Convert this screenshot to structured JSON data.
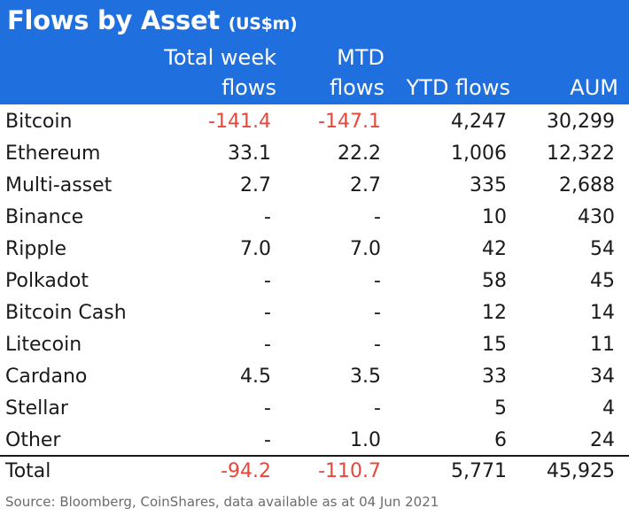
{
  "title": "Flows by Asset",
  "title_unit": "(US$m)",
  "columns": {
    "c1_line1": "Total week",
    "c1_line2": "flows",
    "c2_line1": "MTD",
    "c2_line2": "flows",
    "c3": "YTD flows",
    "c4": "AUM"
  },
  "rows": [
    {
      "name": "Bitcoin",
      "week": "-141.4",
      "mtd": "-147.1",
      "ytd": "4,247",
      "aum": "30,299"
    },
    {
      "name": "Ethereum",
      "week": "33.1",
      "mtd": "22.2",
      "ytd": "1,006",
      "aum": "12,322"
    },
    {
      "name": "Multi-asset",
      "week": "2.7",
      "mtd": "2.7",
      "ytd": "335",
      "aum": "2,688"
    },
    {
      "name": "Binance",
      "week": "-",
      "mtd": "-",
      "ytd": "10",
      "aum": "430"
    },
    {
      "name": "Ripple",
      "week": "7.0",
      "mtd": "7.0",
      "ytd": "42",
      "aum": "54"
    },
    {
      "name": "Polkadot",
      "week": "-",
      "mtd": "-",
      "ytd": "58",
      "aum": "45"
    },
    {
      "name": "Bitcoin Cash",
      "week": "-",
      "mtd": "-",
      "ytd": "12",
      "aum": "14"
    },
    {
      "name": "Litecoin",
      "week": "-",
      "mtd": "-",
      "ytd": "15",
      "aum": "11"
    },
    {
      "name": "Cardano",
      "week": "4.5",
      "mtd": "3.5",
      "ytd": "33",
      "aum": "34"
    },
    {
      "name": "Stellar",
      "week": "-",
      "mtd": "-",
      "ytd": "5",
      "aum": "4"
    },
    {
      "name": "Other",
      "week": "-",
      "mtd": "1.0",
      "ytd": "6",
      "aum": "24"
    }
  ],
  "total": {
    "name": "Total",
    "week": "-94.2",
    "mtd": "-110.7",
    "ytd": "5,771",
    "aum": "45,925"
  },
  "source": "Source: Bloomberg, CoinShares, data available as at 04 Jun 2021",
  "colors": {
    "header_bg": "#1f6fde",
    "negative": "#e8473a",
    "text": "#1a1a1a",
    "source_text": "#6b6b6b"
  }
}
